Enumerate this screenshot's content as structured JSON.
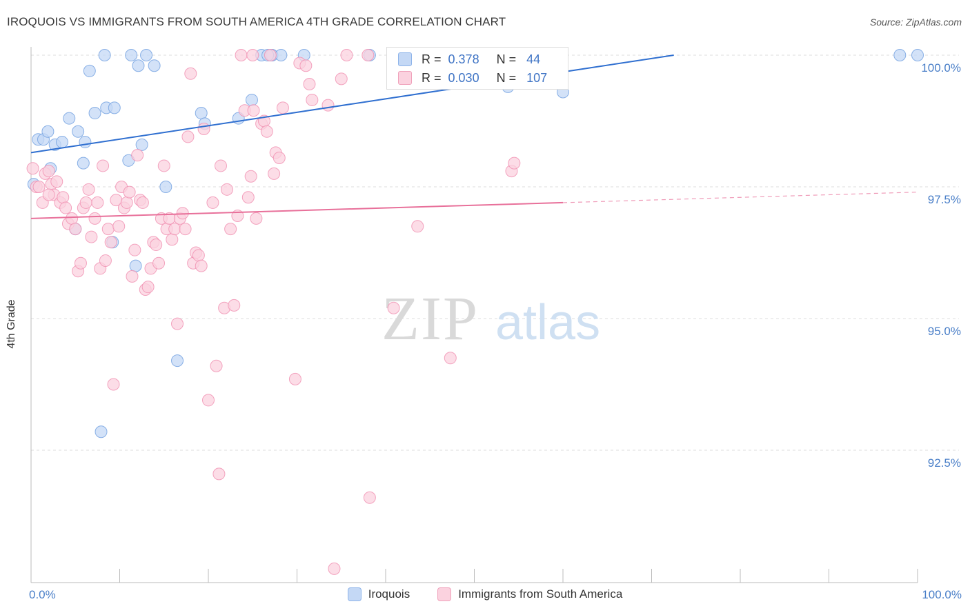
{
  "header": {
    "title": "IROQUOIS VS IMMIGRANTS FROM SOUTH AMERICA 4TH GRADE CORRELATION CHART",
    "source": "Source: ZipAtlas.com"
  },
  "watermark": {
    "zip": "ZIP",
    "atlas": "atlas"
  },
  "stats": [
    {
      "r_label": "R =",
      "r_value": "0.378",
      "n_label": "N =",
      "n_value": "44",
      "color": "#6f9fe0"
    },
    {
      "r_label": "R =",
      "r_value": "0.030",
      "n_label": "N =",
      "n_value": "107",
      "color": "#f08fb0"
    }
  ],
  "legend": {
    "items": [
      {
        "label": "Iroquois",
        "fill": "#c4d8f5",
        "stroke": "#8eb4ea"
      },
      {
        "label": "Immigrants from South America",
        "fill": "#fbd2df",
        "stroke": "#f0a1bb"
      }
    ]
  },
  "chart_data": {
    "type": "scatter",
    "title": "IROQUOIS VS IMMIGRANTS FROM SOUTH AMERICA 4TH GRADE CORRELATION CHART",
    "xlabel": "",
    "ylabel": "4th Grade",
    "xlim": [
      0,
      100
    ],
    "ylim": [
      90.1,
      100.2
    ],
    "x_tick_labels": {
      "min": "0.0%",
      "max": "100.0%"
    },
    "y_ticks": [
      {
        "value": 100.0,
        "label": "100.0%"
      },
      {
        "value": 97.5,
        "label": "97.5%"
      },
      {
        "value": 95.0,
        "label": "95.0%"
      },
      {
        "value": 92.5,
        "label": "92.5%"
      }
    ],
    "grid": true,
    "legend_position": "bottom",
    "series": [
      {
        "name": "Iroquois",
        "color": "#6f9fe0",
        "fill": "#c4d8f5",
        "trend": {
          "x0": 0,
          "y0": 98.15,
          "x1": 72.5,
          "y1": 100.0,
          "dash_from": null,
          "line_color": "#2f6fd0"
        },
        "points": [
          [
            0.3,
            97.55
          ],
          [
            0.8,
            98.4
          ],
          [
            1.4,
            98.4
          ],
          [
            1.9,
            98.55
          ],
          [
            2.2,
            97.85
          ],
          [
            2.7,
            98.3
          ],
          [
            3.5,
            98.35
          ],
          [
            4.3,
            98.8
          ],
          [
            5.0,
            96.7
          ],
          [
            5.3,
            98.55
          ],
          [
            5.9,
            97.95
          ],
          [
            6.1,
            98.35
          ],
          [
            6.6,
            99.7
          ],
          [
            7.2,
            98.9
          ],
          [
            7.9,
            92.85
          ],
          [
            8.3,
            100.0
          ],
          [
            8.5,
            99.0
          ],
          [
            9.4,
            99.0
          ],
          [
            9.2,
            96.45
          ],
          [
            11.0,
            98.0
          ],
          [
            11.3,
            100.0
          ],
          [
            11.8,
            96.0
          ],
          [
            12.1,
            99.8
          ],
          [
            12.5,
            98.3
          ],
          [
            13.0,
            100.0
          ],
          [
            13.9,
            99.8
          ],
          [
            15.2,
            97.5
          ],
          [
            16.5,
            94.2
          ],
          [
            19.2,
            98.9
          ],
          [
            19.6,
            98.7
          ],
          [
            23.4,
            98.8
          ],
          [
            24.9,
            99.15
          ],
          [
            26.0,
            100.0
          ],
          [
            27.1,
            100.0
          ],
          [
            27.2,
            100.0
          ],
          [
            26.7,
            100.0
          ],
          [
            28.2,
            100.0
          ],
          [
            30.8,
            100.0
          ],
          [
            38.2,
            100.0
          ],
          [
            41.1,
            100.0
          ],
          [
            53.8,
            99.4
          ],
          [
            60.0,
            99.3
          ],
          [
            98.0,
            100.0
          ],
          [
            100.0,
            100.0
          ]
        ]
      },
      {
        "name": "Immigrants from South America",
        "color": "#f08fb0",
        "fill": "#fbd2df",
        "trend": {
          "x0": 0,
          "y0": 96.9,
          "x1": 100,
          "y1": 97.4,
          "dash_from": 60,
          "line_color": "#e8709a"
        },
        "points": [
          [
            0.2,
            97.85
          ],
          [
            0.6,
            97.5
          ],
          [
            0.9,
            97.5
          ],
          [
            1.3,
            97.2
          ],
          [
            1.6,
            97.75
          ],
          [
            2.0,
            97.8
          ],
          [
            2.3,
            97.55
          ],
          [
            2.6,
            97.35
          ],
          [
            2.9,
            97.6
          ],
          [
            3.3,
            97.2
          ],
          [
            3.6,
            97.3
          ],
          [
            3.9,
            97.1
          ],
          [
            4.2,
            96.8
          ],
          [
            4.6,
            96.9
          ],
          [
            5.0,
            96.7
          ],
          [
            5.3,
            95.9
          ],
          [
            5.6,
            96.05
          ],
          [
            5.9,
            97.1
          ],
          [
            6.2,
            97.2
          ],
          [
            6.5,
            97.45
          ],
          [
            6.8,
            96.55
          ],
          [
            7.2,
            96.9
          ],
          [
            7.5,
            97.2
          ],
          [
            7.8,
            95.95
          ],
          [
            8.1,
            97.9
          ],
          [
            8.4,
            96.1
          ],
          [
            8.7,
            96.7
          ],
          [
            9.0,
            96.45
          ],
          [
            9.3,
            93.75
          ],
          [
            9.6,
            97.25
          ],
          [
            9.9,
            96.75
          ],
          [
            10.2,
            97.5
          ],
          [
            10.5,
            97.1
          ],
          [
            10.8,
            97.2
          ],
          [
            11.1,
            97.4
          ],
          [
            11.4,
            95.8
          ],
          [
            11.7,
            96.3
          ],
          [
            12.0,
            98.1
          ],
          [
            12.3,
            97.25
          ],
          [
            12.6,
            97.2
          ],
          [
            12.9,
            95.55
          ],
          [
            13.2,
            95.6
          ],
          [
            13.5,
            95.95
          ],
          [
            13.8,
            96.45
          ],
          [
            14.1,
            96.4
          ],
          [
            14.4,
            96.05
          ],
          [
            14.7,
            96.9
          ],
          [
            15.0,
            97.9
          ],
          [
            15.3,
            96.7
          ],
          [
            15.6,
            96.9
          ],
          [
            15.9,
            96.5
          ],
          [
            16.2,
            96.7
          ],
          [
            16.5,
            94.9
          ],
          [
            16.8,
            96.9
          ],
          [
            17.1,
            97.0
          ],
          [
            17.4,
            96.7
          ],
          [
            17.7,
            98.45
          ],
          [
            18.0,
            99.65
          ],
          [
            18.3,
            96.05
          ],
          [
            18.6,
            96.25
          ],
          [
            18.9,
            96.2
          ],
          [
            19.2,
            96.0
          ],
          [
            19.5,
            98.6
          ],
          [
            20.0,
            93.45
          ],
          [
            20.5,
            97.2
          ],
          [
            20.9,
            94.1
          ],
          [
            21.2,
            92.05
          ],
          [
            21.4,
            97.9
          ],
          [
            21.8,
            95.2
          ],
          [
            22.1,
            97.45
          ],
          [
            22.5,
            96.7
          ],
          [
            22.9,
            95.25
          ],
          [
            23.3,
            96.95
          ],
          [
            23.7,
            100.0
          ],
          [
            24.1,
            98.95
          ],
          [
            24.5,
            97.3
          ],
          [
            24.8,
            97.7
          ],
          [
            25.1,
            98.95
          ],
          [
            25.4,
            96.9
          ],
          [
            26.0,
            98.7
          ],
          [
            26.3,
            98.75
          ],
          [
            26.6,
            98.55
          ],
          [
            27.0,
            100.0
          ],
          [
            27.4,
            97.75
          ],
          [
            27.6,
            98.15
          ],
          [
            28.0,
            98.05
          ],
          [
            28.4,
            99.0
          ],
          [
            29.8,
            93.85
          ],
          [
            30.3,
            99.85
          ],
          [
            31.0,
            99.8
          ],
          [
            31.4,
            99.45
          ],
          [
            31.7,
            99.15
          ],
          [
            33.5,
            99.05
          ],
          [
            34.2,
            90.25
          ],
          [
            35.0,
            99.55
          ],
          [
            35.6,
            100.0
          ],
          [
            38.2,
            91.6
          ],
          [
            40.9,
            95.2
          ],
          [
            43.6,
            96.75
          ],
          [
            47.3,
            94.25
          ],
          [
            54.2,
            97.8
          ],
          [
            54.5,
            97.95
          ],
          [
            56.0,
            100.0
          ],
          [
            58.0,
            100.0
          ],
          [
            25.0,
            100.0
          ],
          [
            38.0,
            100.0
          ],
          [
            2.0,
            97.35
          ]
        ]
      }
    ]
  }
}
